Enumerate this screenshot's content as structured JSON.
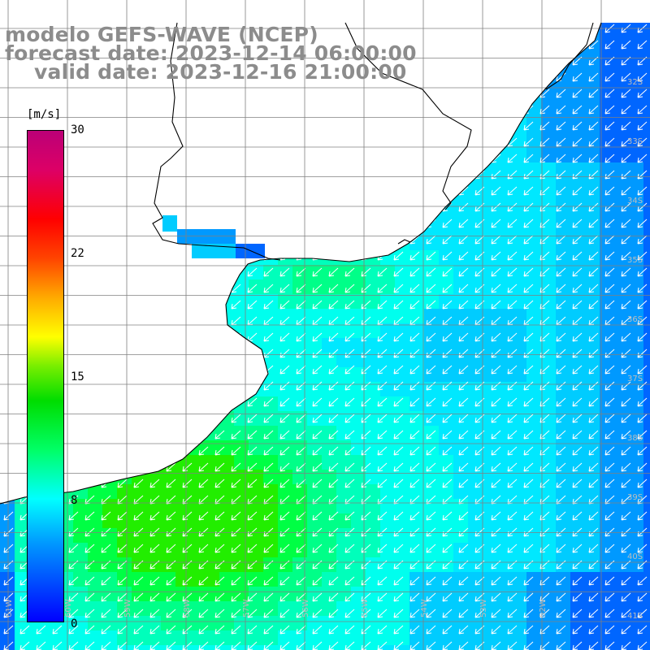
{
  "title": {
    "line1": "modelo GEFS-WAVE (NCEP)",
    "line2": "forecast date: 2023-12-14 06:00:00",
    "line3": "valid date: 2023-12-16 21:00:00"
  },
  "colorbar": {
    "unit": "[m/s]",
    "min": 0,
    "max": 30,
    "ticks": [
      "30",
      "22",
      "15",
      "8",
      "0"
    ]
  },
  "grid": {
    "lat_labels": [
      "32S",
      "33S",
      "34S",
      "35S",
      "36S",
      "37S",
      "38S",
      "39S",
      "40S",
      "41S"
    ],
    "lon_labels": [
      "61W",
      "60W",
      "59W",
      "58W",
      "57W",
      "56W",
      "55W",
      "54W",
      "53W",
      "52W"
    ]
  },
  "colors": {
    "land": "#ffffff",
    "coast": "#000000",
    "grid": "#808080",
    "arrow": "#ffffff",
    "title_text": "#8c8c8c"
  }
}
